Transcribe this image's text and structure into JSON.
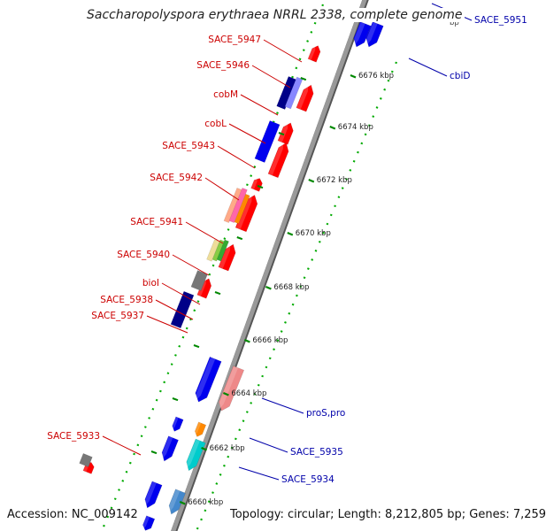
{
  "title": "Saccharopolyspora erythraea NRRL 2338, complete genome",
  "footer": {
    "accession": "Accession: NC_009142",
    "summary": "Topology: circular; Length: 8,212,805 bp; Genes: 7,259"
  },
  "colors": {
    "backbone": "#999999",
    "backbone_dark": "#555555",
    "tick": "#008800",
    "dot": "#00aa00",
    "red_label": "#cc0000",
    "blue_label": "#0000aa"
  },
  "scale": {
    "top_partial_label": "bp",
    "ticks": [
      {
        "label": "6676 kbp"
      },
      {
        "label": "6674 kbp"
      },
      {
        "label": "6672 kbp"
      },
      {
        "label": "6670 kbp"
      },
      {
        "label": "6668 kbp"
      },
      {
        "label": "6666 kbp"
      },
      {
        "label": "6664 kbp"
      },
      {
        "label": "6662 kbp"
      },
      {
        "label": "6660 kbp"
      }
    ]
  },
  "left_labels": [
    {
      "text": "SACE_5947"
    },
    {
      "text": "SACE_5946"
    },
    {
      "text": "cobM"
    },
    {
      "text": "cobL"
    },
    {
      "text": "SACE_5943"
    },
    {
      "text": "SACE_5942"
    },
    {
      "text": "SACE_5941"
    },
    {
      "text": "SACE_5940"
    },
    {
      "text": "bioI"
    },
    {
      "text": "SACE_5938"
    },
    {
      "text": "SACE_5937"
    },
    {
      "text": "SACE_5933"
    }
  ],
  "right_labels": [
    {
      "text": "SACE_5951"
    },
    {
      "text": "cbiD"
    },
    {
      "text": "proS,pro"
    },
    {
      "text": "SACE_5935"
    },
    {
      "text": "SACE_5934"
    }
  ],
  "genes": [
    {
      "color": "#ff0000",
      "strand": "+"
    },
    {
      "color": "#0000ee",
      "strand": "-"
    },
    {
      "color": "#ff0000",
      "strand": "+"
    },
    {
      "color": "#0000ee",
      "strand": "-"
    },
    {
      "color": "#ff0000",
      "strand": "+"
    },
    {
      "color": "#ff0000",
      "strand": "+"
    },
    {
      "color": "#ff0000",
      "strand": "+"
    },
    {
      "color": "#ff0000",
      "strand": "+"
    },
    {
      "color": "#ff0000",
      "strand": "+"
    },
    {
      "color": "#ff0000",
      "strand": "+"
    },
    {
      "color": "#0000ee",
      "strand": "-"
    },
    {
      "color": "#ee8888",
      "strand": "-"
    },
    {
      "color": "#0000ee",
      "strand": "-"
    },
    {
      "color": "#ff8800",
      "strand": "-"
    },
    {
      "color": "#0000ee",
      "strand": "-"
    },
    {
      "color": "#00cccc",
      "strand": "-"
    },
    {
      "color": "#0000ee",
      "strand": "-"
    },
    {
      "color": "#4488cc",
      "strand": "-"
    },
    {
      "color": "#0000ee",
      "strand": "-"
    },
    {
      "color": "#ff0000",
      "strand": "+"
    }
  ],
  "features": [
    {
      "color": "#000088"
    },
    {
      "color": "#8888ff"
    },
    {
      "color": "#0000ee"
    },
    {
      "color": "#ffaa88"
    },
    {
      "color": "#ff66aa"
    },
    {
      "color": "#ff8800"
    },
    {
      "color": "#eedd99"
    },
    {
      "color": "#88cc44"
    },
    {
      "color": "#33aa33"
    },
    {
      "color": "#777777"
    },
    {
      "color": "#000088"
    },
    {
      "color": "#777777"
    }
  ]
}
